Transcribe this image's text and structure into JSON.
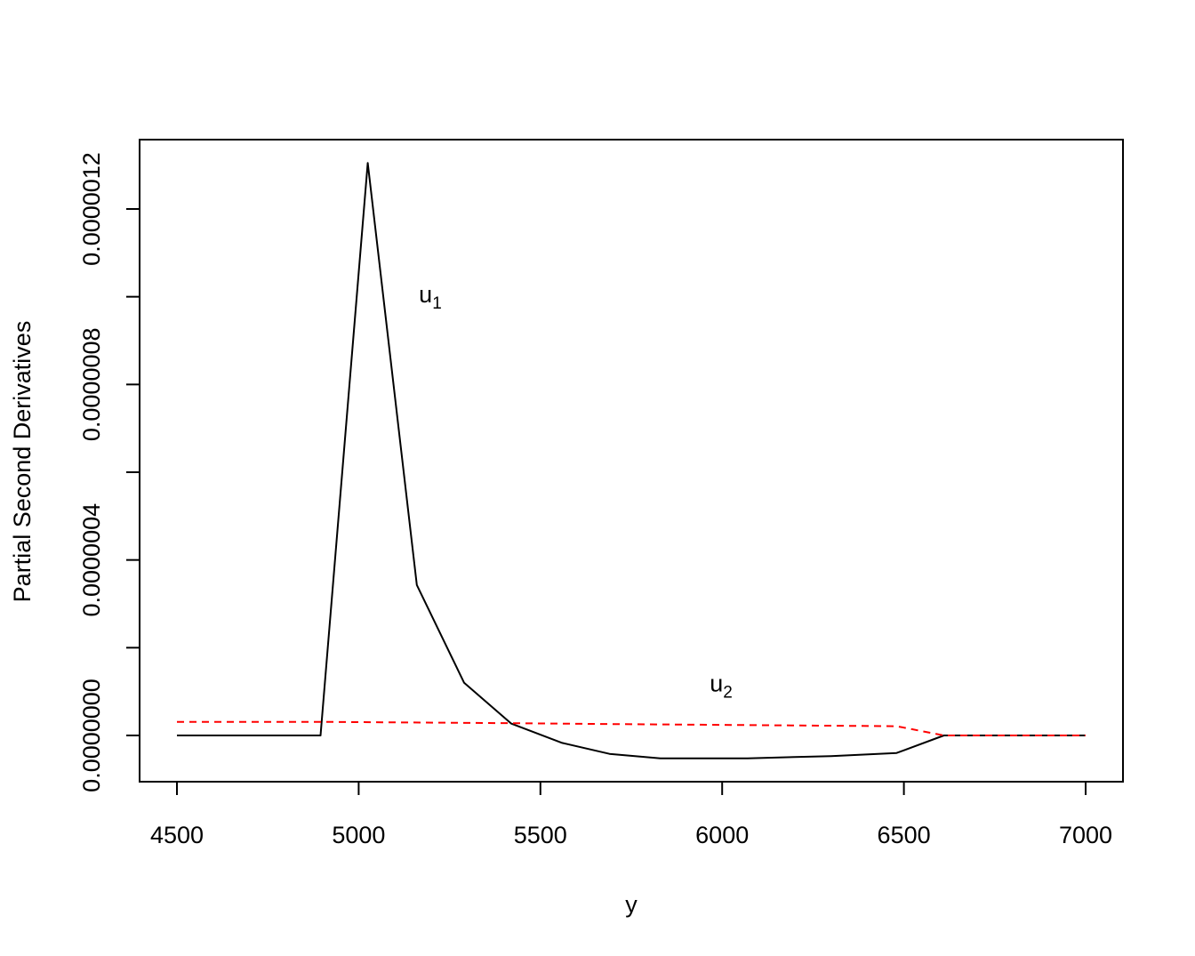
{
  "chart_data": {
    "type": "line",
    "title": "",
    "xlabel": "y",
    "ylabel": "Partial Second Derivatives",
    "xlim": [
      4400,
      7100
    ],
    "ylim": [
      -1.05e-07,
      1.305e-06
    ],
    "x_ticks": [
      4500,
      5000,
      5500,
      6000,
      6500,
      7000
    ],
    "x_tick_labels": [
      "4500",
      "5000",
      "5500",
      "6000",
      "6500",
      "7000"
    ],
    "y_ticks": [
      0,
      2e-07,
      4e-07,
      6e-07,
      8e-07,
      1e-06,
      1.2e-06
    ],
    "y_tick_labels": [
      "0.0000000",
      "",
      "0.0000004",
      "",
      "0.0000008",
      "",
      "0.0000012"
    ],
    "grid": false,
    "series": [
      {
        "annotation_base": "u",
        "annotation_sub": "1",
        "annotation_at": [
          5200,
          9.87e-07
        ],
        "color": "#000000",
        "dash": "solid",
        "x": [
          4500,
          4895,
          5025,
          5160,
          5290,
          5420,
          5560,
          5690,
          5830,
          6070,
          6300,
          6480,
          6610,
          7000
        ],
        "y": [
          0,
          0,
          1.305e-06,
          3.43e-07,
          1.2e-07,
          2.7e-08,
          -1.7e-08,
          -4.2e-08,
          -5.2e-08,
          -5.2e-08,
          -4.7e-08,
          -4e-08,
          0,
          0
        ]
      },
      {
        "annotation_base": "u",
        "annotation_sub": "2",
        "annotation_at": [
          6000,
          1e-07
        ],
        "color": "#ff0000",
        "dash": "dashed",
        "x": [
          4500,
          4895,
          5420,
          5700,
          6480,
          6610,
          7000
        ],
        "y": [
          3.1e-08,
          3.1e-08,
          2.8e-08,
          2.6e-08,
          2.1e-08,
          0,
          0
        ]
      }
    ]
  }
}
